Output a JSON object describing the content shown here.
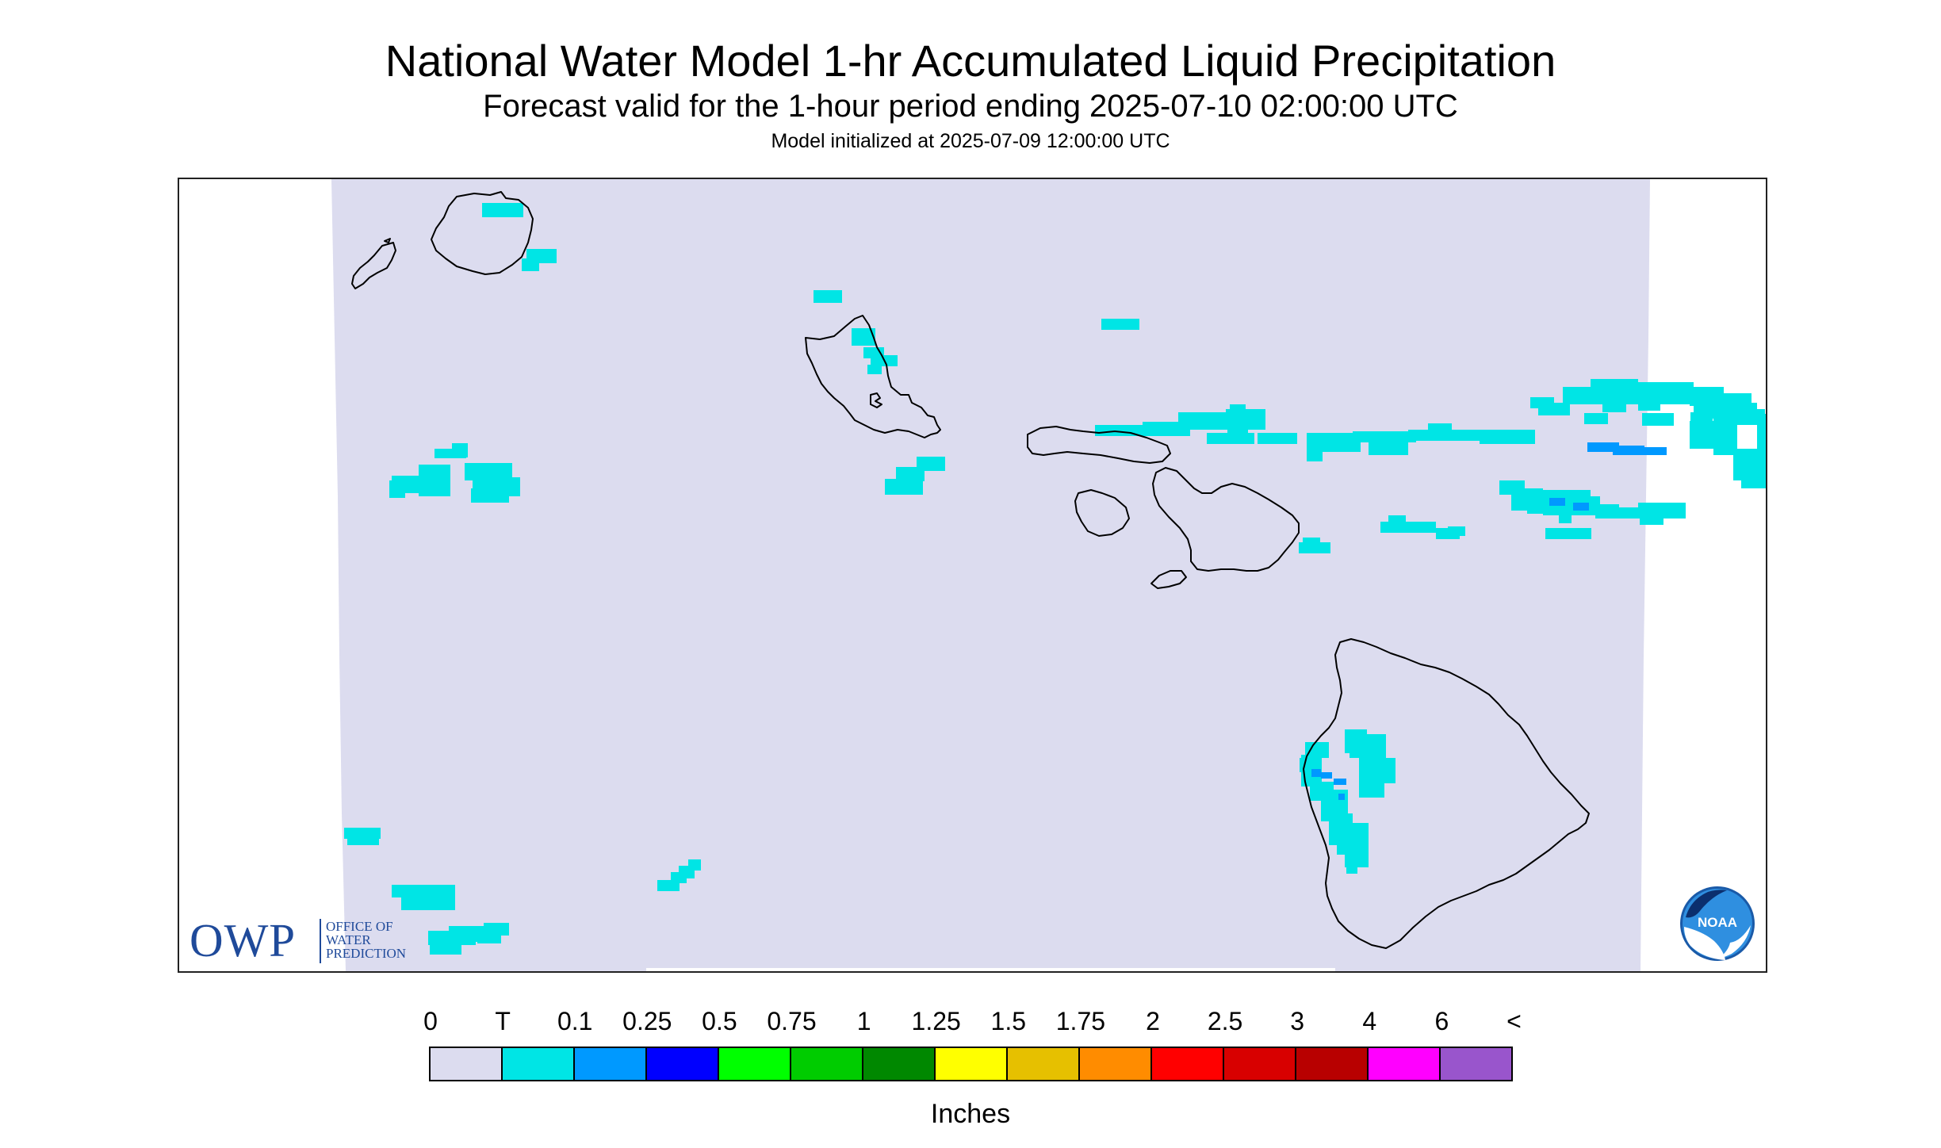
{
  "title": "National Water Model 1-hr Accumulated Liquid Precipitation",
  "subtitle": "Forecast valid for the 1-hour period ending 2025-07-10 02:00:00 UTC",
  "init_line": "Model initialized at 2025-07-09 12:00:00 UTC",
  "map": {
    "region": "Hawaiian Islands",
    "background_color": "#dcdcef",
    "precip_light_color": "#00e5e5",
    "precip_moderate_color": "#0099ff"
  },
  "legend": {
    "unit": "Inches",
    "ticks": [
      "0",
      "T",
      "0.1",
      "0.25",
      "0.5",
      "0.75",
      "1",
      "1.25",
      "1.5",
      "1.75",
      "2",
      "2.5",
      "3",
      "4",
      "6",
      "<"
    ],
    "colors": [
      "#dcdcef",
      "#00e5e5",
      "#0099ff",
      "#0000ff",
      "#00ff00",
      "#00cc00",
      "#008800",
      "#ffff00",
      "#e6c000",
      "#ff8c00",
      "#ff0000",
      "#d80000",
      "#b80000",
      "#ff00ff",
      "#9955cc"
    ]
  },
  "logos": {
    "owp": {
      "letters": "OWP",
      "line1": "OFFICE OF",
      "line2": "WATER",
      "line3": "PREDICTION"
    },
    "noaa": {
      "letters": "NOAA"
    }
  }
}
